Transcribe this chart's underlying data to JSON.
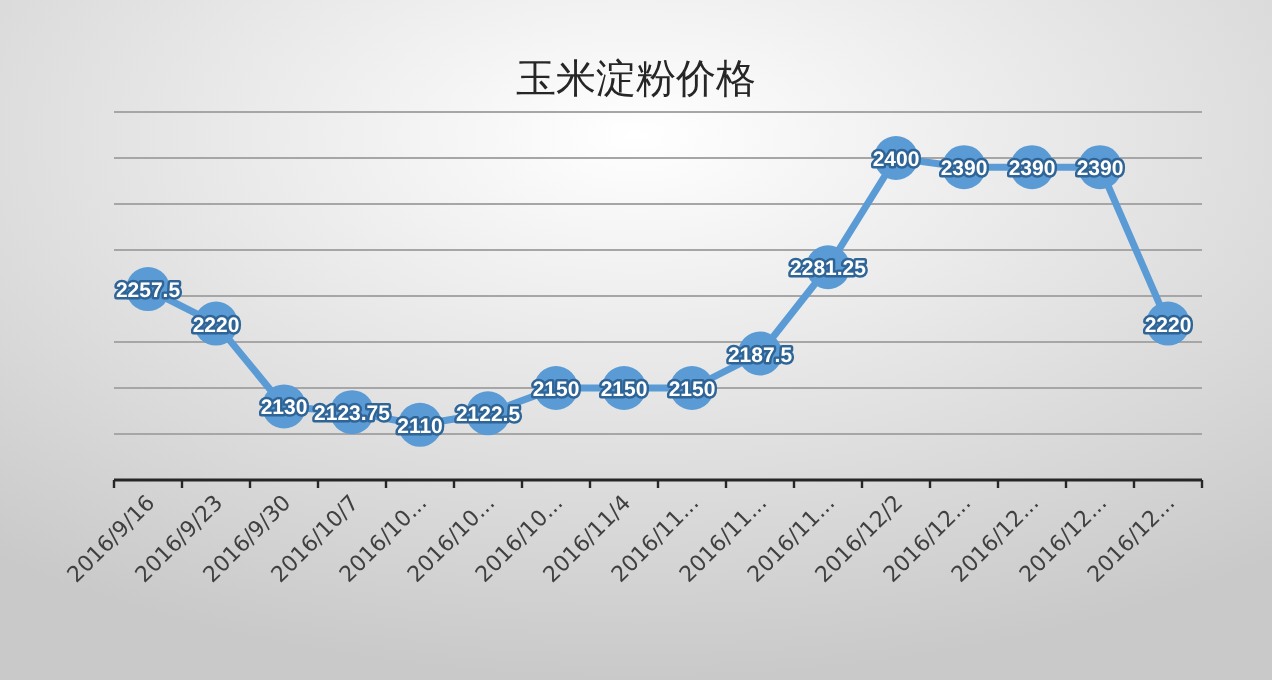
{
  "chart_data": {
    "type": "line",
    "title": "玉米淀粉价格",
    "categories": [
      "2016/9/16",
      "2016/9/23",
      "2016/9/30",
      "2016/10/7",
      "2016/10...",
      "2016/10...",
      "2016/10...",
      "2016/11/4",
      "2016/11...",
      "2016/11...",
      "2016/11...",
      "2016/12/2",
      "2016/12...",
      "2016/12...",
      "2016/12...",
      "2016/12..."
    ],
    "series": [
      {
        "color": "#5b9bd5",
        "values": [
          2257.5,
          2220,
          2130,
          2123.75,
          2110,
          2122.5,
          2150,
          2150,
          2150,
          2187.5,
          2281.25,
          2400,
          2390,
          2390,
          2390,
          2220
        ]
      }
    ],
    "ylim": [
      2050,
      2450
    ],
    "yticks": [
      {
        "value": 2050,
        "label": null
      },
      {
        "value": 2100,
        "label": null
      },
      {
        "value": 2150,
        "label": null
      },
      {
        "value": 2200,
        "label": null
      },
      {
        "value": 2250,
        "label": null
      },
      {
        "value": 2300,
        "label": null
      },
      {
        "value": 2350,
        "label": null
      },
      {
        "value": 2400,
        "label": null
      },
      {
        "value": 2450,
        "label": null
      }
    ],
    "grid": "y",
    "tick_labels": "x",
    "marker": "circle",
    "line_style": "solid",
    "data_labels": true
  }
}
